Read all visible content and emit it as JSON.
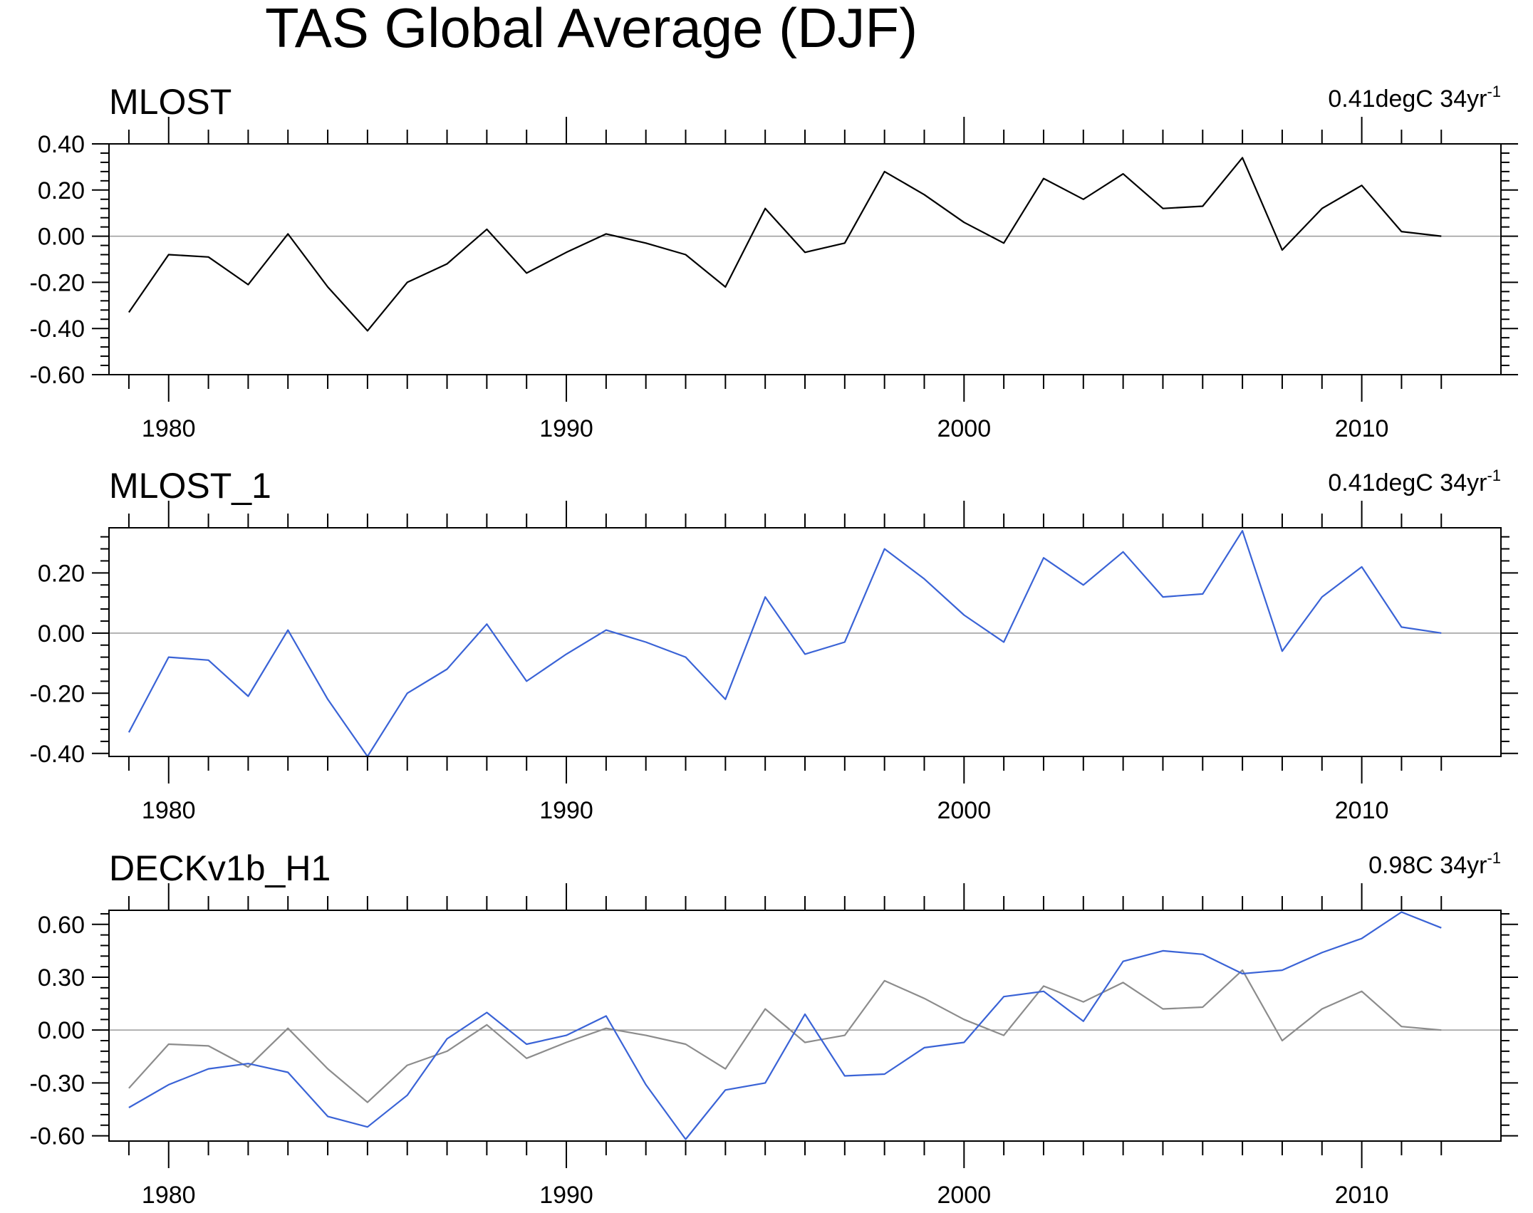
{
  "title": "TAS Global Average (DJF)",
  "chart_data": [
    {
      "type": "line",
      "panel_title": "MLOST",
      "trend": {
        "value": "0.41degC 34yr",
        "exponent": "-1"
      },
      "x": [
        1979,
        1980,
        1981,
        1982,
        1983,
        1984,
        1985,
        1986,
        1987,
        1988,
        1989,
        1990,
        1991,
        1992,
        1993,
        1994,
        1995,
        1996,
        1997,
        1998,
        1999,
        2000,
        2001,
        2002,
        2003,
        2004,
        2005,
        2006,
        2007,
        2008,
        2009,
        2010,
        2011,
        2012
      ],
      "xlim": [
        1978.5,
        2013.5
      ],
      "ylim": [
        -0.6,
        0.4
      ],
      "xticks": [
        1980,
        1990,
        2000,
        2010
      ],
      "xtick_labels": [
        "1980",
        "1990",
        "2000",
        "2010"
      ],
      "yticks": [
        -0.6,
        -0.4,
        -0.2,
        0.0,
        0.2,
        0.4
      ],
      "ytick_labels": [
        "-0.60",
        "-0.40",
        "-0.20",
        "0.00",
        "0.20",
        "0.40"
      ],
      "series": [
        {
          "name": "MLOST",
          "color": "#000000",
          "values": [
            -0.33,
            -0.08,
            -0.09,
            -0.21,
            0.01,
            -0.22,
            -0.41,
            -0.2,
            -0.12,
            0.03,
            -0.16,
            -0.07,
            0.01,
            -0.03,
            -0.08,
            -0.22,
            0.12,
            -0.07,
            -0.03,
            0.28,
            0.18,
            0.06,
            -0.03,
            0.25,
            0.16,
            0.27,
            0.12,
            0.13,
            0.34,
            -0.06,
            0.12,
            0.22,
            0.02,
            0.0
          ]
        }
      ]
    },
    {
      "type": "line",
      "panel_title": "MLOST_1",
      "trend": {
        "value": "0.41degC 34yr",
        "exponent": "-1"
      },
      "x": [
        1979,
        1980,
        1981,
        1982,
        1983,
        1984,
        1985,
        1986,
        1987,
        1988,
        1989,
        1990,
        1991,
        1992,
        1993,
        1994,
        1995,
        1996,
        1997,
        1998,
        1999,
        2000,
        2001,
        2002,
        2003,
        2004,
        2005,
        2006,
        2007,
        2008,
        2009,
        2010,
        2011,
        2012
      ],
      "xlim": [
        1978.5,
        2013.5
      ],
      "ylim": [
        -0.41,
        0.35
      ],
      "xticks": [
        1980,
        1990,
        2000,
        2010
      ],
      "xtick_labels": [
        "1980",
        "1990",
        "2000",
        "2010"
      ],
      "yticks": [
        -0.4,
        -0.2,
        0.0,
        0.2
      ],
      "ytick_labels": [
        "-0.40",
        "-0.20",
        "0.00",
        "0.20"
      ],
      "series": [
        {
          "name": "MLOST_1",
          "color": "#3a63d6",
          "values": [
            -0.33,
            -0.08,
            -0.09,
            -0.21,
            0.01,
            -0.22,
            -0.41,
            -0.2,
            -0.12,
            0.03,
            -0.16,
            -0.07,
            0.01,
            -0.03,
            -0.08,
            -0.22,
            0.12,
            -0.07,
            -0.03,
            0.28,
            0.18,
            0.06,
            -0.03,
            0.25,
            0.16,
            0.27,
            0.12,
            0.13,
            0.34,
            -0.06,
            0.12,
            0.22,
            0.02,
            0.0
          ]
        }
      ]
    },
    {
      "type": "line",
      "panel_title": "DECKv1b_H1",
      "trend": {
        "value": "0.98C 34yr",
        "exponent": "-1"
      },
      "x": [
        1979,
        1980,
        1981,
        1982,
        1983,
        1984,
        1985,
        1986,
        1987,
        1988,
        1989,
        1990,
        1991,
        1992,
        1993,
        1994,
        1995,
        1996,
        1997,
        1998,
        1999,
        2000,
        2001,
        2002,
        2003,
        2004,
        2005,
        2006,
        2007,
        2008,
        2009,
        2010,
        2011,
        2012
      ],
      "xlim": [
        1978.5,
        2013.5
      ],
      "ylim": [
        -0.63,
        0.68
      ],
      "xticks": [
        1980,
        1990,
        2000,
        2010
      ],
      "xtick_labels": [
        "1980",
        "1990",
        "2000",
        "2010"
      ],
      "yticks": [
        -0.6,
        -0.3,
        0.0,
        0.3,
        0.6
      ],
      "ytick_labels": [
        "-0.60",
        "-0.30",
        "0.00",
        "0.30",
        "0.60"
      ],
      "series": [
        {
          "name": "DECKv1b_H1",
          "color": "#3a63d6",
          "values": [
            -0.44,
            -0.31,
            -0.22,
            -0.19,
            -0.24,
            -0.49,
            -0.55,
            -0.37,
            -0.05,
            0.1,
            -0.08,
            -0.03,
            0.08,
            -0.31,
            -0.62,
            -0.34,
            -0.3,
            0.09,
            -0.26,
            -0.25,
            -0.1,
            -0.07,
            0.19,
            0.22,
            0.05,
            0.39,
            0.45,
            0.43,
            0.32,
            0.34,
            0.44,
            0.52,
            0.67,
            0.58
          ]
        },
        {
          "name": "MLOST",
          "color": "#8c8c8c",
          "values": [
            -0.33,
            -0.08,
            -0.09,
            -0.21,
            0.01,
            -0.22,
            -0.41,
            -0.2,
            -0.12,
            0.03,
            -0.16,
            -0.07,
            0.01,
            -0.03,
            -0.08,
            -0.22,
            0.12,
            -0.07,
            -0.03,
            0.28,
            0.18,
            0.06,
            -0.03,
            0.25,
            0.16,
            0.27,
            0.12,
            0.13,
            0.34,
            -0.06,
            0.12,
            0.22,
            0.02,
            0.0
          ]
        }
      ]
    }
  ]
}
